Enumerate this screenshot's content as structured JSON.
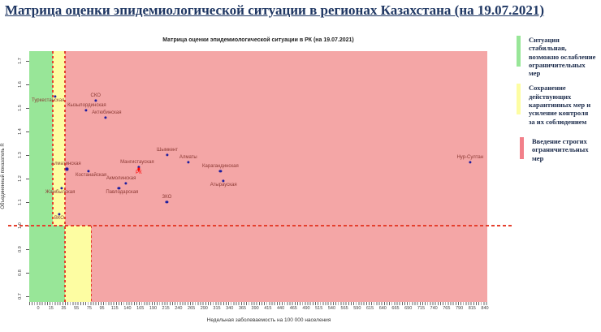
{
  "page": {
    "title": "Матрица оценки эпидемиологической ситуации в регионах Казахстана (на 19.07.2021)",
    "title_color": "#1f3763"
  },
  "legend": {
    "text_color": "#1a2a4a",
    "items": [
      {
        "color": "#98e698",
        "lines": [
          "Ситуация",
          "стабильная,",
          "возможно ослабление",
          "ограничительных",
          "мер"
        ]
      },
      {
        "color": "#fdfda2",
        "lines": [
          "Сохранение",
          "действующих",
          "карантинных мер и",
          "усиление контроля",
          "за их соблюдением"
        ]
      },
      {
        "color": "#f2808a",
        "lines": [
          "Введение строгих",
          "ограничительных",
          "мер"
        ]
      }
    ]
  },
  "chart_data": {
    "type": "scatter",
    "title": "Матрица оценки эпидемиологической ситуации в РК (на 19.07.2021)",
    "xlabel": "Недельная заболеваемость на 100 000 населения",
    "ylabel": "Объединенный показатель R",
    "x_tick_labels": [
      0,
      15,
      35,
      55,
      75,
      95,
      115,
      140,
      165,
      190,
      215,
      240,
      265,
      290,
      315,
      340,
      365,
      390,
      415,
      440,
      465,
      490,
      515,
      540,
      565,
      590,
      615,
      640,
      665,
      690,
      715,
      740,
      765,
      790,
      815,
      840
    ],
    "y_ticks": [
      1.7,
      1.6,
      1.5,
      1.4,
      1.3,
      1.2,
      1.1,
      1.0,
      0.9,
      0.8,
      0.7
    ],
    "ylim": [
      0.7,
      1.7
    ],
    "grid": false,
    "legend_position": "right",
    "r_threshold": 1.0,
    "threshold_line_color": "#e5402e",
    "zone_colors": {
      "green": "#98e698",
      "yellow": "#fdfda2",
      "red": "#f4a6a6"
    },
    "zone_boundaries": {
      "above_threshold": {
        "green_max": 18,
        "yellow_max": 37
      },
      "below_threshold": {
        "green_max": 37,
        "yellow_max": 78
      }
    },
    "point_color": "#1e1e9e",
    "label_color": "#8b3a34",
    "points": [
      {
        "name": "Туркестанская",
        "x": 22,
        "r": 1.55,
        "label_pos": "below",
        "label_dx": -9
      },
      {
        "name": "СКО",
        "x": 85,
        "r": 1.53,
        "label_pos": "above",
        "label_dx": 0
      },
      {
        "name": "Кызылординская",
        "x": 70,
        "r": 1.49,
        "label_pos": "above",
        "label_dx": 1
      },
      {
        "name": "Актюбинская",
        "x": 101,
        "r": 1.46,
        "label_pos": "above",
        "label_dx": 1
      },
      {
        "name": "Шымкент",
        "x": 218,
        "r": 1.3,
        "label_pos": "above",
        "label_dx": 0
      },
      {
        "name": "Алматы",
        "x": 259,
        "r": 1.27,
        "label_pos": "above",
        "label_dx": 0
      },
      {
        "name": "Нур-Султан",
        "x": 811,
        "r": 1.27,
        "label_pos": "above",
        "label_dx": 0
      },
      {
        "name": "Мангистауская",
        "x": 162,
        "r": 1.25,
        "label_pos": "above",
        "label_dx": -2
      },
      {
        "name": "РК",
        "x": 162,
        "r": 1.24,
        "label_pos": "below",
        "label_dx": 0,
        "color": "#ff0000",
        "label_color": "#ff0000"
      },
      {
        "name": "Алматинская",
        "x": 40,
        "r": 1.24,
        "label_pos": "above",
        "label_dx": -1
      },
      {
        "name": "Костанайская",
        "x": 74,
        "r": 1.23,
        "label_pos": "below",
        "label_dx": 3
      },
      {
        "name": "Карагандинская",
        "x": 322,
        "r": 1.23,
        "label_pos": "above",
        "label_dx": 0
      },
      {
        "name": "Атырауская",
        "x": 328,
        "r": 1.19,
        "label_pos": "below",
        "label_dx": 0
      },
      {
        "name": "Акмолинская",
        "x": 137,
        "r": 1.18,
        "label_pos": "above",
        "label_dx": -6
      },
      {
        "name": "Павлодарская",
        "x": 123,
        "r": 1.16,
        "label_pos": "below",
        "label_dx": 4
      },
      {
        "name": "Жамбылская",
        "x": 32,
        "r": 1.16,
        "label_pos": "below",
        "label_dx": -2
      },
      {
        "name": "ЗКО",
        "x": 217,
        "r": 1.1,
        "label_pos": "above",
        "label_dx": 0
      },
      {
        "name": "ВКО",
        "x": 28,
        "r": 1.05,
        "label_pos": "below",
        "label_dx": 0
      }
    ]
  }
}
